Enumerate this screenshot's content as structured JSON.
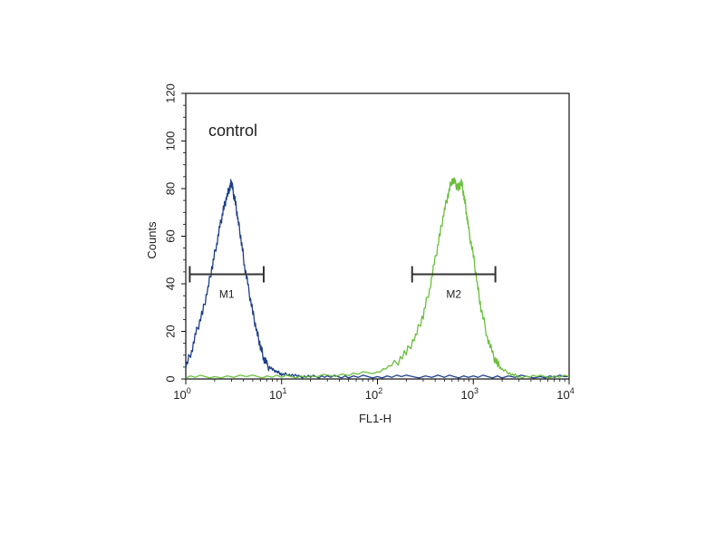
{
  "chart_data": {
    "type": "line",
    "title": "",
    "xlabel": "FL1-H",
    "ylabel": "Counts",
    "x_scale": "log",
    "xlim": [
      1,
      10000
    ],
    "ylim": [
      0,
      120
    ],
    "x_ticks": [
      1,
      10,
      100,
      1000,
      10000
    ],
    "x_tick_labels": [
      {
        "base": "10",
        "exp": "0"
      },
      {
        "base": "10",
        "exp": "1"
      },
      {
        "base": "10",
        "exp": "2"
      },
      {
        "base": "10",
        "exp": "3"
      },
      {
        "base": "10",
        "exp": "4"
      }
    ],
    "y_ticks": [
      0,
      20,
      40,
      60,
      80,
      100,
      120
    ],
    "y_tick_labels": [
      "0",
      "20",
      "40",
      "60",
      "80",
      "100",
      "120"
    ],
    "grid": false,
    "annotation": "control",
    "series": [
      {
        "color": "#1f3f8a",
        "x": [
          1.0,
          1.15,
          1.3,
          1.5,
          1.7,
          1.9,
          2.1,
          2.3,
          2.5,
          2.7,
          2.9,
          3.0,
          3.1,
          3.3,
          3.5,
          3.8,
          4.1,
          4.5,
          5.0,
          5.5,
          6.0,
          6.5,
          7.0,
          8.0,
          9.0,
          10.0,
          12.0,
          15.0,
          20.0,
          30.0,
          50.0,
          100.0,
          200.0,
          500.0,
          1000.0,
          2000.0,
          5000.0,
          10000.0
        ],
        "y": [
          5,
          12,
          20,
          28,
          38,
          48,
          57,
          65,
          72,
          77,
          81,
          83,
          79,
          74,
          67,
          58,
          48,
          38,
          28,
          20,
          14,
          9,
          6,
          4,
          3,
          2,
          2,
          1,
          1,
          1,
          1,
          1,
          1,
          1,
          1,
          1,
          1,
          1
        ]
      },
      {
        "color": "#6abf3c",
        "x": [
          1.0,
          2.0,
          5.0,
          10.0,
          20.0,
          50.0,
          100.0,
          150.0,
          200.0,
          250.0,
          300.0,
          350.0,
          400.0,
          450.0,
          500.0,
          550.0,
          600.0,
          650.0,
          700.0,
          750.0,
          800.0,
          850.0,
          900.0,
          1000.0,
          1100.0,
          1200.0,
          1400.0,
          1600.0,
          1800.0,
          2000.0,
          2500.0,
          3000.0,
          5000.0,
          10000.0
        ],
        "y": [
          1,
          1,
          1,
          1,
          1,
          2,
          3,
          6,
          11,
          18,
          27,
          38,
          50,
          61,
          71,
          78,
          84,
          82,
          80,
          83,
          77,
          70,
          62,
          52,
          40,
          30,
          18,
          10,
          6,
          4,
          2,
          1,
          1,
          1
        ]
      }
    ],
    "markers": [
      {
        "label": "M1",
        "x_range": [
          1.1,
          6.5
        ],
        "y": 44
      },
      {
        "label": "M2",
        "x_range": [
          230,
          1700
        ],
        "y": 44
      }
    ]
  }
}
